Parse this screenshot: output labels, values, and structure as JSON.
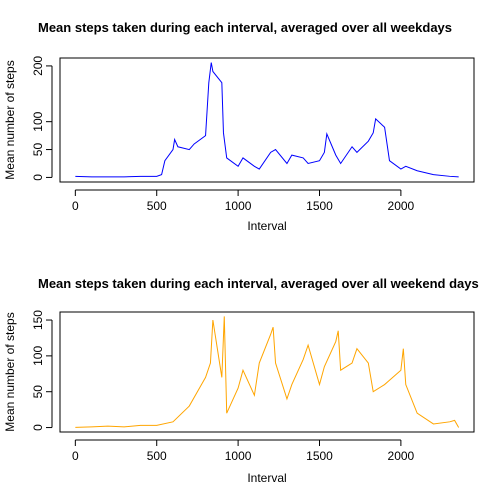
{
  "chart_data": [
    {
      "type": "line",
      "title": "Mean steps taken during each interval, averaged over all weekdays",
      "xlabel": "Interval",
      "ylabel": "Mean number of steps",
      "x": [
        0,
        100,
        200,
        300,
        400,
        500,
        530,
        550,
        600,
        610,
        630,
        700,
        730,
        800,
        820,
        835,
        845,
        900,
        910,
        930,
        1000,
        1030,
        1100,
        1130,
        1200,
        1230,
        1300,
        1330,
        1400,
        1430,
        1500,
        1530,
        1545,
        1600,
        1630,
        1700,
        1730,
        1800,
        1830,
        1845,
        1900,
        1930,
        2000,
        2030,
        2100,
        2200,
        2300,
        2355
      ],
      "series": [
        {
          "name": "weekday",
          "color": "#0000ff",
          "values": [
            2,
            1,
            1,
            1,
            2,
            2,
            5,
            30,
            50,
            68,
            55,
            50,
            60,
            75,
            170,
            206,
            190,
            170,
            80,
            35,
            20,
            35,
            20,
            15,
            45,
            50,
            25,
            40,
            35,
            25,
            30,
            45,
            78,
            40,
            25,
            55,
            45,
            65,
            80,
            105,
            90,
            30,
            15,
            20,
            12,
            5,
            2,
            1
          ]
        }
      ],
      "xlim": [
        -94.2,
        2449.2
      ],
      "xticks": [
        0,
        500,
        1000,
        1500,
        2000
      ],
      "ylim": [
        -8.2,
        214.2
      ],
      "yticks": [
        0,
        50,
        100,
        200
      ]
    },
    {
      "type": "line",
      "title": "Mean steps taken during each interval, averaged over all weekend days",
      "xlabel": "Interval",
      "ylabel": "Mean number of steps",
      "x": [
        0,
        100,
        200,
        300,
        400,
        500,
        600,
        700,
        800,
        830,
        845,
        900,
        915,
        930,
        1000,
        1030,
        1100,
        1130,
        1200,
        1215,
        1230,
        1300,
        1330,
        1400,
        1430,
        1500,
        1530,
        1600,
        1615,
        1630,
        1700,
        1730,
        1800,
        1830,
        1900,
        2000,
        2015,
        2030,
        2100,
        2200,
        2300,
        2330,
        2355
      ],
      "series": [
        {
          "name": "weekend",
          "color": "#ffa500",
          "values": [
            0.2,
            1,
            2,
            1,
            3,
            3,
            8,
            30,
            70,
            90,
            150,
            70,
            155,
            20,
            55,
            80,
            45,
            90,
            130,
            140,
            90,
            40,
            60,
            95,
            115,
            60,
            85,
            120,
            135,
            80,
            90,
            110,
            90,
            50,
            60,
            80,
            110,
            60,
            20,
            5,
            8,
            10,
            0
          ]
        }
      ],
      "xlim": [
        -94.2,
        2449.2
      ],
      "xticks": [
        0,
        500,
        1000,
        1500,
        2000
      ],
      "ylim": [
        -6.2,
        161.2
      ],
      "yticks": [
        0,
        50,
        100,
        150
      ]
    }
  ]
}
